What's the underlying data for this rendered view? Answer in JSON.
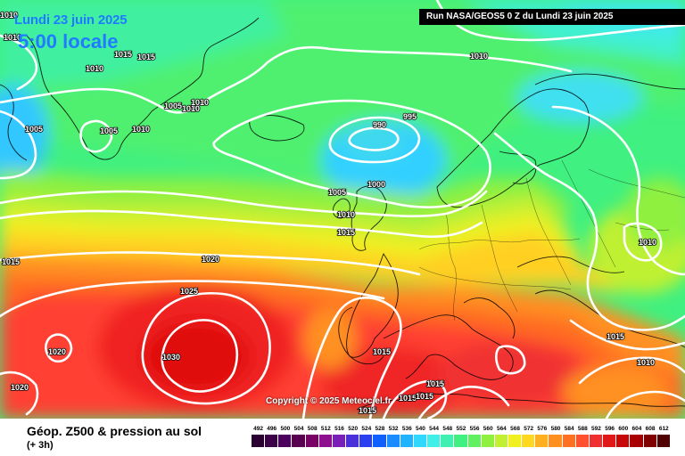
{
  "header": {
    "date": "Lundi 23 juin 2025",
    "time": "5:00 locale",
    "run": "Run NASA/GEOS5 0 Z du Lundi 23 juin 2025"
  },
  "copyright": "Copyright © 2025 Meteociel.fr",
  "legend": {
    "title": "Géop. Z500 & pression au sol",
    "subtitle": "(+ 3h)",
    "scale": [
      {
        "v": "492",
        "c": "#2a0033"
      },
      {
        "v": "496",
        "c": "#3b0048"
      },
      {
        "v": "500",
        "c": "#4a005c"
      },
      {
        "v": "504",
        "c": "#590050"
      },
      {
        "v": "508",
        "c": "#7a0066"
      },
      {
        "v": "512",
        "c": "#8e1090"
      },
      {
        "v": "516",
        "c": "#7a20b8"
      },
      {
        "v": "520",
        "c": "#4a30d8"
      },
      {
        "v": "524",
        "c": "#2a40f0"
      },
      {
        "v": "528",
        "c": "#1060ff"
      },
      {
        "v": "532",
        "c": "#1a8cff"
      },
      {
        "v": "536",
        "c": "#20b4ff"
      },
      {
        "v": "540",
        "c": "#30d8ff"
      },
      {
        "v": "544",
        "c": "#40f0e8"
      },
      {
        "v": "548",
        "c": "#40f0b0"
      },
      {
        "v": "552",
        "c": "#40f080"
      },
      {
        "v": "556",
        "c": "#60f060"
      },
      {
        "v": "560",
        "c": "#90f040"
      },
      {
        "v": "564",
        "c": "#c0f030"
      },
      {
        "v": "568",
        "c": "#f0f020"
      },
      {
        "v": "572",
        "c": "#ffd820"
      },
      {
        "v": "576",
        "c": "#ffb020"
      },
      {
        "v": "580",
        "c": "#ff9020"
      },
      {
        "v": "584",
        "c": "#ff7020"
      },
      {
        "v": "588",
        "c": "#ff5030"
      },
      {
        "v": "592",
        "c": "#f03030"
      },
      {
        "v": "596",
        "c": "#e01818"
      },
      {
        "v": "600",
        "c": "#c80808"
      },
      {
        "v": "604",
        "c": "#a80000"
      },
      {
        "v": "608",
        "c": "#800000"
      },
      {
        "v": "612",
        "c": "#500000"
      }
    ]
  },
  "isobar_labels": [
    {
      "t": "1010"
    },
    {
      "t": "1010"
    },
    {
      "t": "1015"
    },
    {
      "t": "1015"
    },
    {
      "t": "1010"
    },
    {
      "t": "1005"
    },
    {
      "t": "1005"
    },
    {
      "t": "1010"
    },
    {
      "t": "1005"
    },
    {
      "t": "1010"
    },
    {
      "t": "1010"
    },
    {
      "t": "990"
    },
    {
      "t": "995"
    },
    {
      "t": "1010"
    },
    {
      "t": "1000"
    },
    {
      "t": "1005"
    },
    {
      "t": "1010"
    },
    {
      "t": "1015"
    },
    {
      "t": "1010"
    },
    {
      "t": "1015"
    },
    {
      "t": "1020"
    },
    {
      "t": "1025"
    },
    {
      "t": "1030"
    },
    {
      "t": "1020"
    },
    {
      "t": "1020"
    },
    {
      "t": "1015"
    },
    {
      "t": "1015"
    },
    {
      "t": "1015"
    },
    {
      "t": "1015"
    },
    {
      "t": "1015"
    },
    {
      "t": "1010"
    },
    {
      "t": "1015"
    }
  ]
}
